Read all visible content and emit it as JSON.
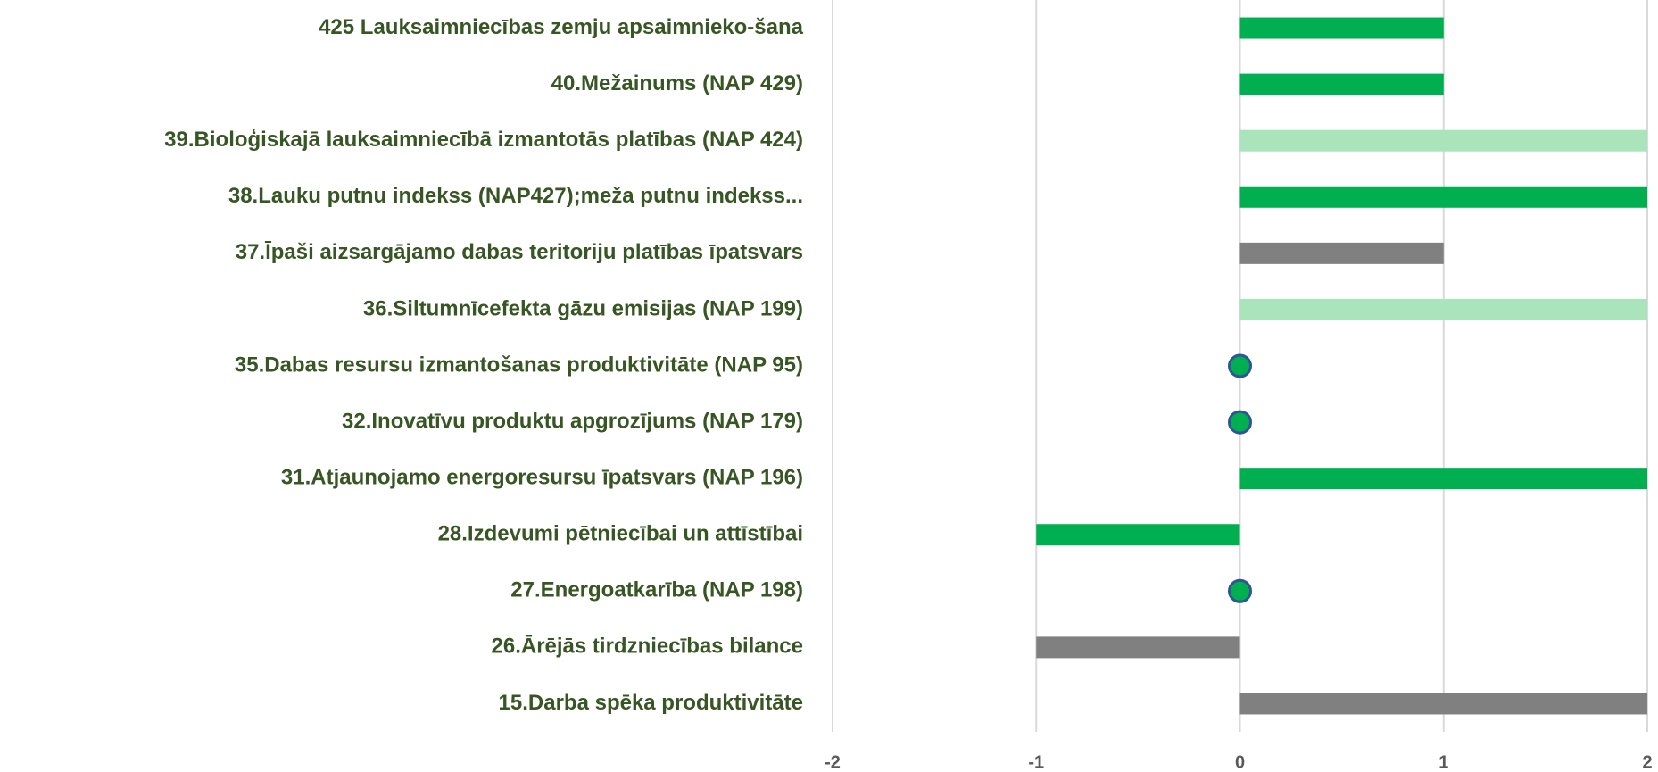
{
  "chart_data": {
    "type": "bar",
    "orientation": "horizontal",
    "categories": [
      "425 Lauksaimniecības zemju apsaimnieko-šana",
      "40.Mežainums (NAP 429)",
      "39.Bioloģiskajā lauksaimniecībā izmantotās platības (NAP 424)",
      "38.Lauku putnu indekss (NAP427);meža putnu indekss...",
      "37.Īpaši aizsargājamo dabas teritoriju platības īpatsvars",
      "36.Siltumnīcefekta gāzu emisijas (NAP 199)",
      "35.Dabas resursu izmantošanas produktivitāte (NAP 95)",
      "32.Inovatīvu produktu apgrozījums (NAP 179)",
      "31.Atjaunojamo energoresursu īpatsvars (NAP 196)",
      "28.Izdevumi pētniecībai un attīstībai",
      "27.Energoatkarība (NAP 198)",
      "26.Ārējās tirdzniecības bilance",
      "15.Darba spēka produktivitāte"
    ],
    "values": [
      1,
      1,
      2,
      2,
      1,
      2,
      0,
      0,
      2,
      -1,
      0,
      -1,
      2
    ],
    "colors": [
      "#00b050",
      "#00b050",
      "#a9e4bb",
      "#00b050",
      "#808080",
      "#a9e4bb",
      "#00b050",
      "#00b050",
      "#00b050",
      "#00b050",
      "#00b050",
      "#808080",
      "#808080"
    ],
    "xlim": [
      -2,
      2
    ],
    "xticks": [
      -2,
      -1,
      0,
      1,
      2
    ],
    "grid": true
  }
}
